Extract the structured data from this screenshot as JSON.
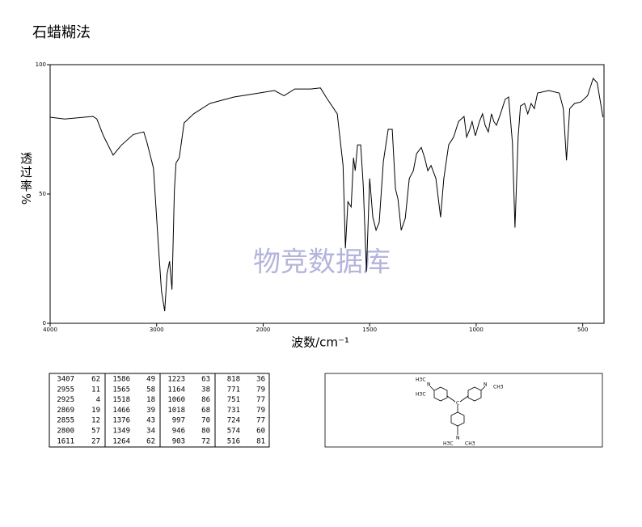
{
  "chart_data": {
    "type": "line",
    "title": "石蜡糊法",
    "xlabel": "波数/cm⁻¹",
    "ylabel": "透过率%",
    "watermark": "物竞数据库",
    "color": "#000000",
    "x": [
      4000,
      3864,
      3598,
      3561,
      3500,
      3409,
      3333,
      3220,
      3121,
      3091,
      3030,
      2985,
      2955,
      2924,
      2902,
      2879,
      2856,
      2833,
      2818,
      2788,
      2742,
      2652,
      2500,
      2273,
      2045,
      1947,
      1902,
      1852,
      1777,
      1731,
      1701,
      1652,
      1625,
      1614,
      1602,
      1587,
      1576,
      1568,
      1557,
      1542,
      1530,
      1515,
      1500,
      1485,
      1470,
      1455,
      1436,
      1413,
      1394,
      1379,
      1367,
      1352,
      1333,
      1314,
      1295,
      1280,
      1258,
      1242,
      1227,
      1212,
      1189,
      1167,
      1152,
      1129,
      1106,
      1083,
      1057,
      1045,
      1030,
      1019,
      1004,
      985,
      970,
      958,
      943,
      928,
      917,
      905,
      886,
      864,
      848,
      830,
      818,
      803,
      792,
      773,
      758,
      742,
      727,
      712,
      659,
      610,
      591,
      576,
      561,
      538,
      508,
      477,
      451,
      432,
      405
    ],
    "values": [
      79.7,
      79,
      80,
      79,
      72.5,
      65,
      68.8,
      73,
      74,
      70,
      60,
      31,
      12.5,
      4.7,
      19,
      24,
      13,
      51.6,
      62,
      64,
      77.5,
      81,
      85,
      87.5,
      89,
      90,
      88,
      90.6,
      90.6,
      91,
      87,
      81,
      61,
      29,
      47,
      45,
      64,
      59,
      69,
      69,
      53,
      20,
      56,
      41,
      36,
      39,
      62.5,
      75,
      75,
      52,
      48,
      36,
      40.6,
      56,
      59,
      65.6,
      68,
      64,
      59,
      61,
      56,
      41,
      56,
      69,
      72,
      78,
      80,
      72,
      75,
      78,
      72.5,
      78,
      81,
      76.6,
      74,
      81,
      78,
      76.6,
      81,
      86.6,
      87.5,
      70,
      37,
      72,
      84,
      85,
      81,
      85,
      83,
      89,
      90,
      89,
      83,
      63,
      83,
      85,
      85.6,
      88,
      94.7,
      93,
      79.7
    ],
    "xlim": [
      4000,
      400
    ],
    "ylim": [
      0,
      100
    ],
    "xticks": [
      4000,
      3000,
      2000,
      1500,
      1000,
      500
    ],
    "yticks": [
      0,
      50,
      100
    ]
  },
  "peak_table": {
    "rows": [
      [
        [
          "3407",
          "62"
        ],
        [
          "1586",
          "49"
        ],
        [
          "1223",
          "63"
        ],
        [
          "818",
          "36"
        ]
      ],
      [
        [
          "2955",
          "11"
        ],
        [
          "1565",
          "58"
        ],
        [
          "1164",
          "38"
        ],
        [
          "771",
          "79"
        ]
      ],
      [
        [
          "2925",
          "4"
        ],
        [
          "1518",
          "18"
        ],
        [
          "1060",
          "86"
        ],
        [
          "751",
          "77"
        ]
      ],
      [
        [
          "2869",
          "19"
        ],
        [
          "1466",
          "39"
        ],
        [
          "1018",
          "68"
        ],
        [
          "731",
          "79"
        ]
      ],
      [
        [
          "2855",
          "12"
        ],
        [
          "1376",
          "43"
        ],
        [
          "997",
          "70"
        ],
        [
          "724",
          "77"
        ]
      ],
      [
        [
          "2800",
          "57"
        ],
        [
          "1349",
          "34"
        ],
        [
          "946",
          "80"
        ],
        [
          "574",
          "60"
        ]
      ],
      [
        [
          "1611",
          "27"
        ],
        [
          "1264",
          "62"
        ],
        [
          "903",
          "72"
        ],
        [
          "516",
          "81"
        ]
      ]
    ]
  },
  "structure": {
    "labels": [
      "H3C",
      "N",
      "H3C",
      "N",
      "CH3",
      "C",
      "N",
      "H3C",
      "CH3"
    ]
  }
}
